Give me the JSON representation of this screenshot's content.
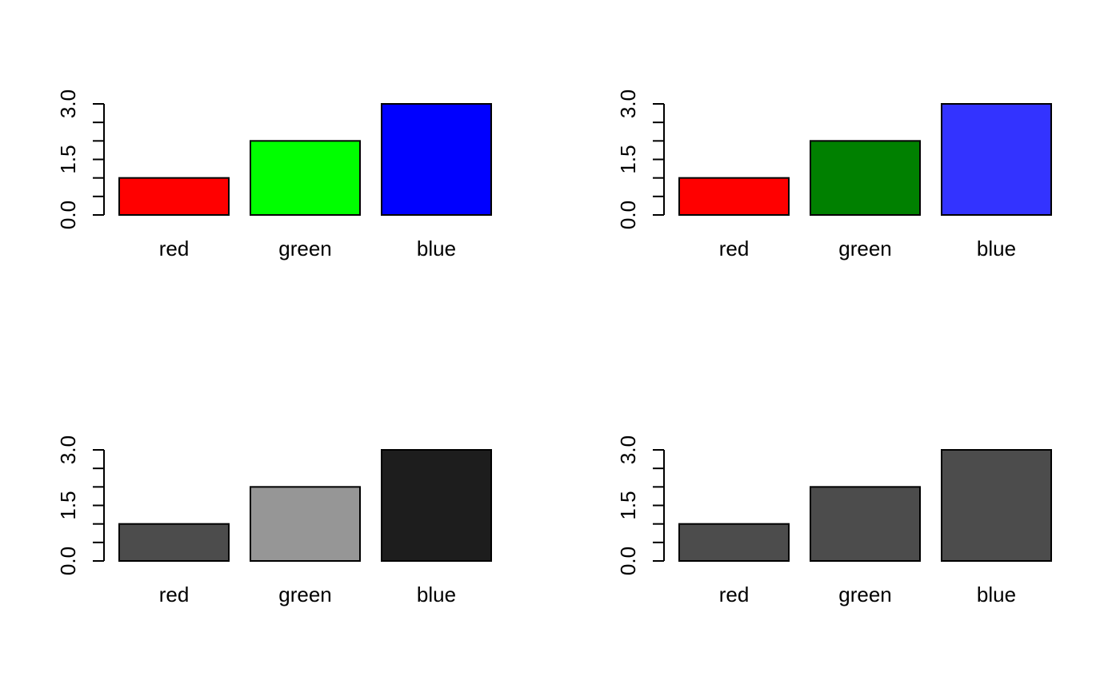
{
  "chart_data": [
    {
      "type": "bar",
      "categories": [
        "red",
        "green",
        "blue"
      ],
      "values": [
        1,
        2,
        3
      ],
      "colors": [
        "#ff0000",
        "#00ff00",
        "#0000ff"
      ],
      "ylim": [
        0,
        3
      ],
      "yticks": [
        "0.0",
        "1.5",
        "3.0"
      ],
      "title": "",
      "xlabel": "",
      "ylabel": ""
    },
    {
      "type": "bar",
      "categories": [
        "red",
        "green",
        "blue"
      ],
      "values": [
        1,
        2,
        3
      ],
      "colors": [
        "#ff0000",
        "#008000",
        "#3333ff"
      ],
      "ylim": [
        0,
        3
      ],
      "yticks": [
        "0.0",
        "1.5",
        "3.0"
      ],
      "title": "",
      "xlabel": "",
      "ylabel": ""
    },
    {
      "type": "bar",
      "categories": [
        "red",
        "green",
        "blue"
      ],
      "values": [
        1,
        2,
        3
      ],
      "colors": [
        "#4c4c4c",
        "#969696",
        "#1d1d1d"
      ],
      "ylim": [
        0,
        3
      ],
      "yticks": [
        "0.0",
        "1.5",
        "3.0"
      ],
      "title": "",
      "xlabel": "",
      "ylabel": ""
    },
    {
      "type": "bar",
      "categories": [
        "red",
        "green",
        "blue"
      ],
      "values": [
        1,
        2,
        3
      ],
      "colors": [
        "#4c4c4c",
        "#4c4c4c",
        "#4c4c4c"
      ],
      "ylim": [
        0,
        3
      ],
      "yticks": [
        "0.0",
        "1.5",
        "3.0"
      ],
      "title": "",
      "xlabel": "",
      "ylabel": ""
    }
  ]
}
